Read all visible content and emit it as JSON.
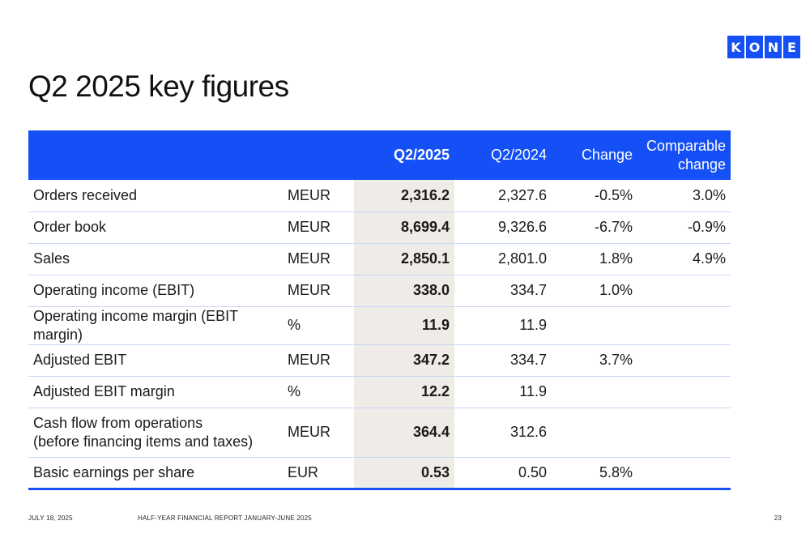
{
  "logo": [
    "K",
    "O",
    "N",
    "E"
  ],
  "title": "Q2 2025 key figures",
  "table": {
    "headers": [
      "",
      "",
      "Q2/2025",
      "Q2/2024",
      "Change",
      "Comparable change"
    ],
    "header_comparable_line1": "Comparable",
    "header_comparable_line2": "change",
    "rows": [
      {
        "label": "Orders received",
        "unit": "MEUR",
        "q2_2025": "2,316.2",
        "q2_2024": "2,327.6",
        "change": "-0.5%",
        "comparable": "3.0%"
      },
      {
        "label": "Order book",
        "unit": "MEUR",
        "q2_2025": "8,699.4",
        "q2_2024": "9,326.6",
        "change": "-6.7%",
        "comparable": "-0.9%"
      },
      {
        "label": "Sales",
        "unit": "MEUR",
        "q2_2025": "2,850.1",
        "q2_2024": "2,801.0",
        "change": "1.8%",
        "comparable": "4.9%"
      },
      {
        "label": "Operating income (EBIT)",
        "unit": "MEUR",
        "q2_2025": "338.0",
        "q2_2024": "334.7",
        "change": "1.0%",
        "comparable": ""
      },
      {
        "label": "Operating income margin (EBIT margin)",
        "unit": "%",
        "q2_2025": "11.9",
        "q2_2024": "11.9",
        "change": "",
        "comparable": ""
      },
      {
        "label": "Adjusted EBIT",
        "unit": "MEUR",
        "q2_2025": "347.2",
        "q2_2024": "334.7",
        "change": "3.7%",
        "comparable": ""
      },
      {
        "label": "Adjusted EBIT margin",
        "unit": "%",
        "q2_2025": "12.2",
        "q2_2024": "11.9",
        "change": "",
        "comparable": ""
      },
      {
        "label_line1": "Cash flow from operations",
        "label_line2": "(before financing items and taxes)",
        "unit": "MEUR",
        "q2_2025": "364.4",
        "q2_2024": "312.6",
        "change": "",
        "comparable": ""
      },
      {
        "label": "Basic earnings per share",
        "unit": "EUR",
        "q2_2025": "0.53",
        "q2_2024": "0.50",
        "change": "5.8%",
        "comparable": ""
      }
    ]
  },
  "footer": {
    "date": "JULY 18, 2025",
    "report": "HALF-YEAR FINANCIAL REPORT JANUARY-JUNE 2025",
    "page_number": "23"
  },
  "colors": {
    "brand_blue": "#1450f5",
    "highlight_column": "#efebe6",
    "row_divider": "#c9d6f8"
  }
}
